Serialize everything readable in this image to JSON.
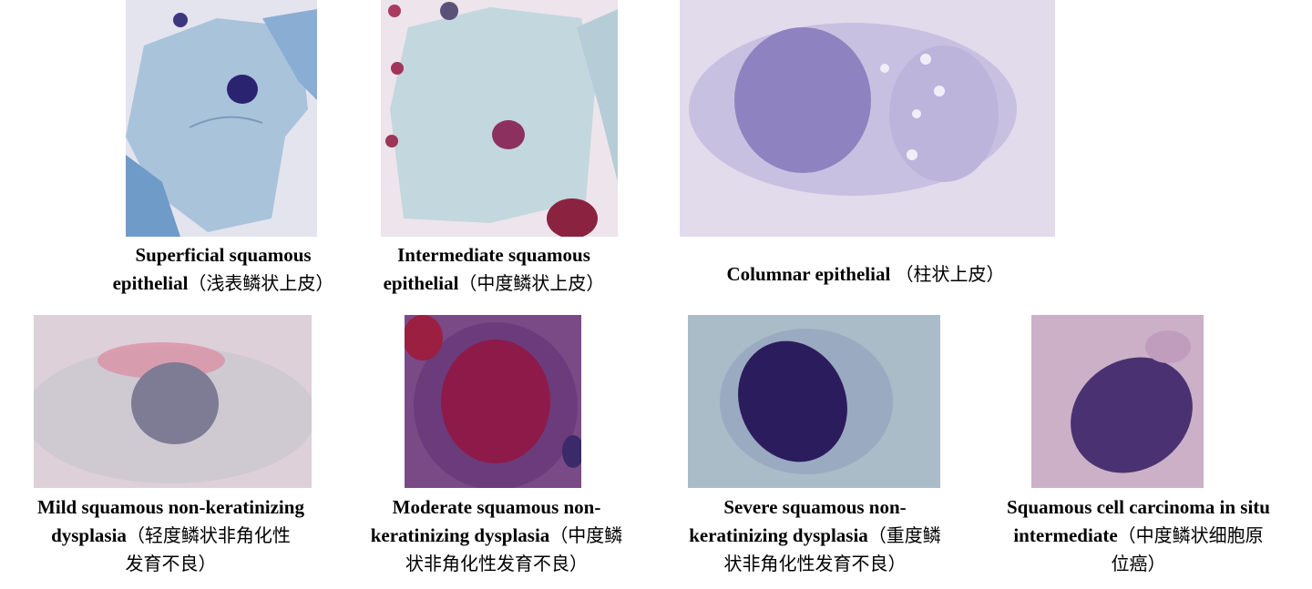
{
  "figure": {
    "panels": [
      {
        "id": "superficial",
        "caption_en": [
          "Superficial squamous",
          "epithelial"
        ],
        "caption_zh": "（浅表鳞状上皮）"
      },
      {
        "id": "intermediate",
        "caption_en": [
          "Intermediate squamous",
          "epithelial"
        ],
        "caption_zh": "（中度鳞状上皮）"
      },
      {
        "id": "columnar",
        "caption_en": [
          "Columnar epithelial "
        ],
        "caption_zh": "（柱状上皮）"
      },
      {
        "id": "mild",
        "caption_en": [
          "Mild squamous non-keratinizing",
          "dysplasia"
        ],
        "caption_zh": [
          "（轻度鳞状非角化性",
          "发育不良）"
        ]
      },
      {
        "id": "moderate",
        "caption_en": [
          "Moderate squamous non-",
          "keratinizing dysplasia"
        ],
        "caption_zh": [
          "（中度鳞",
          "状非角化性发育不良）"
        ]
      },
      {
        "id": "severe",
        "caption_en": [
          "Severe squamous non-",
          "keratinizing dysplasia"
        ],
        "caption_zh": [
          "（重度鳞",
          "状非角化性发育不良）"
        ]
      },
      {
        "id": "carcinoma",
        "caption_en": [
          "Squamous cell carcinoma in situ",
          "intermediate"
        ],
        "caption_zh": [
          "（中度鳞状细胞原",
          "位癌）"
        ]
      }
    ]
  }
}
